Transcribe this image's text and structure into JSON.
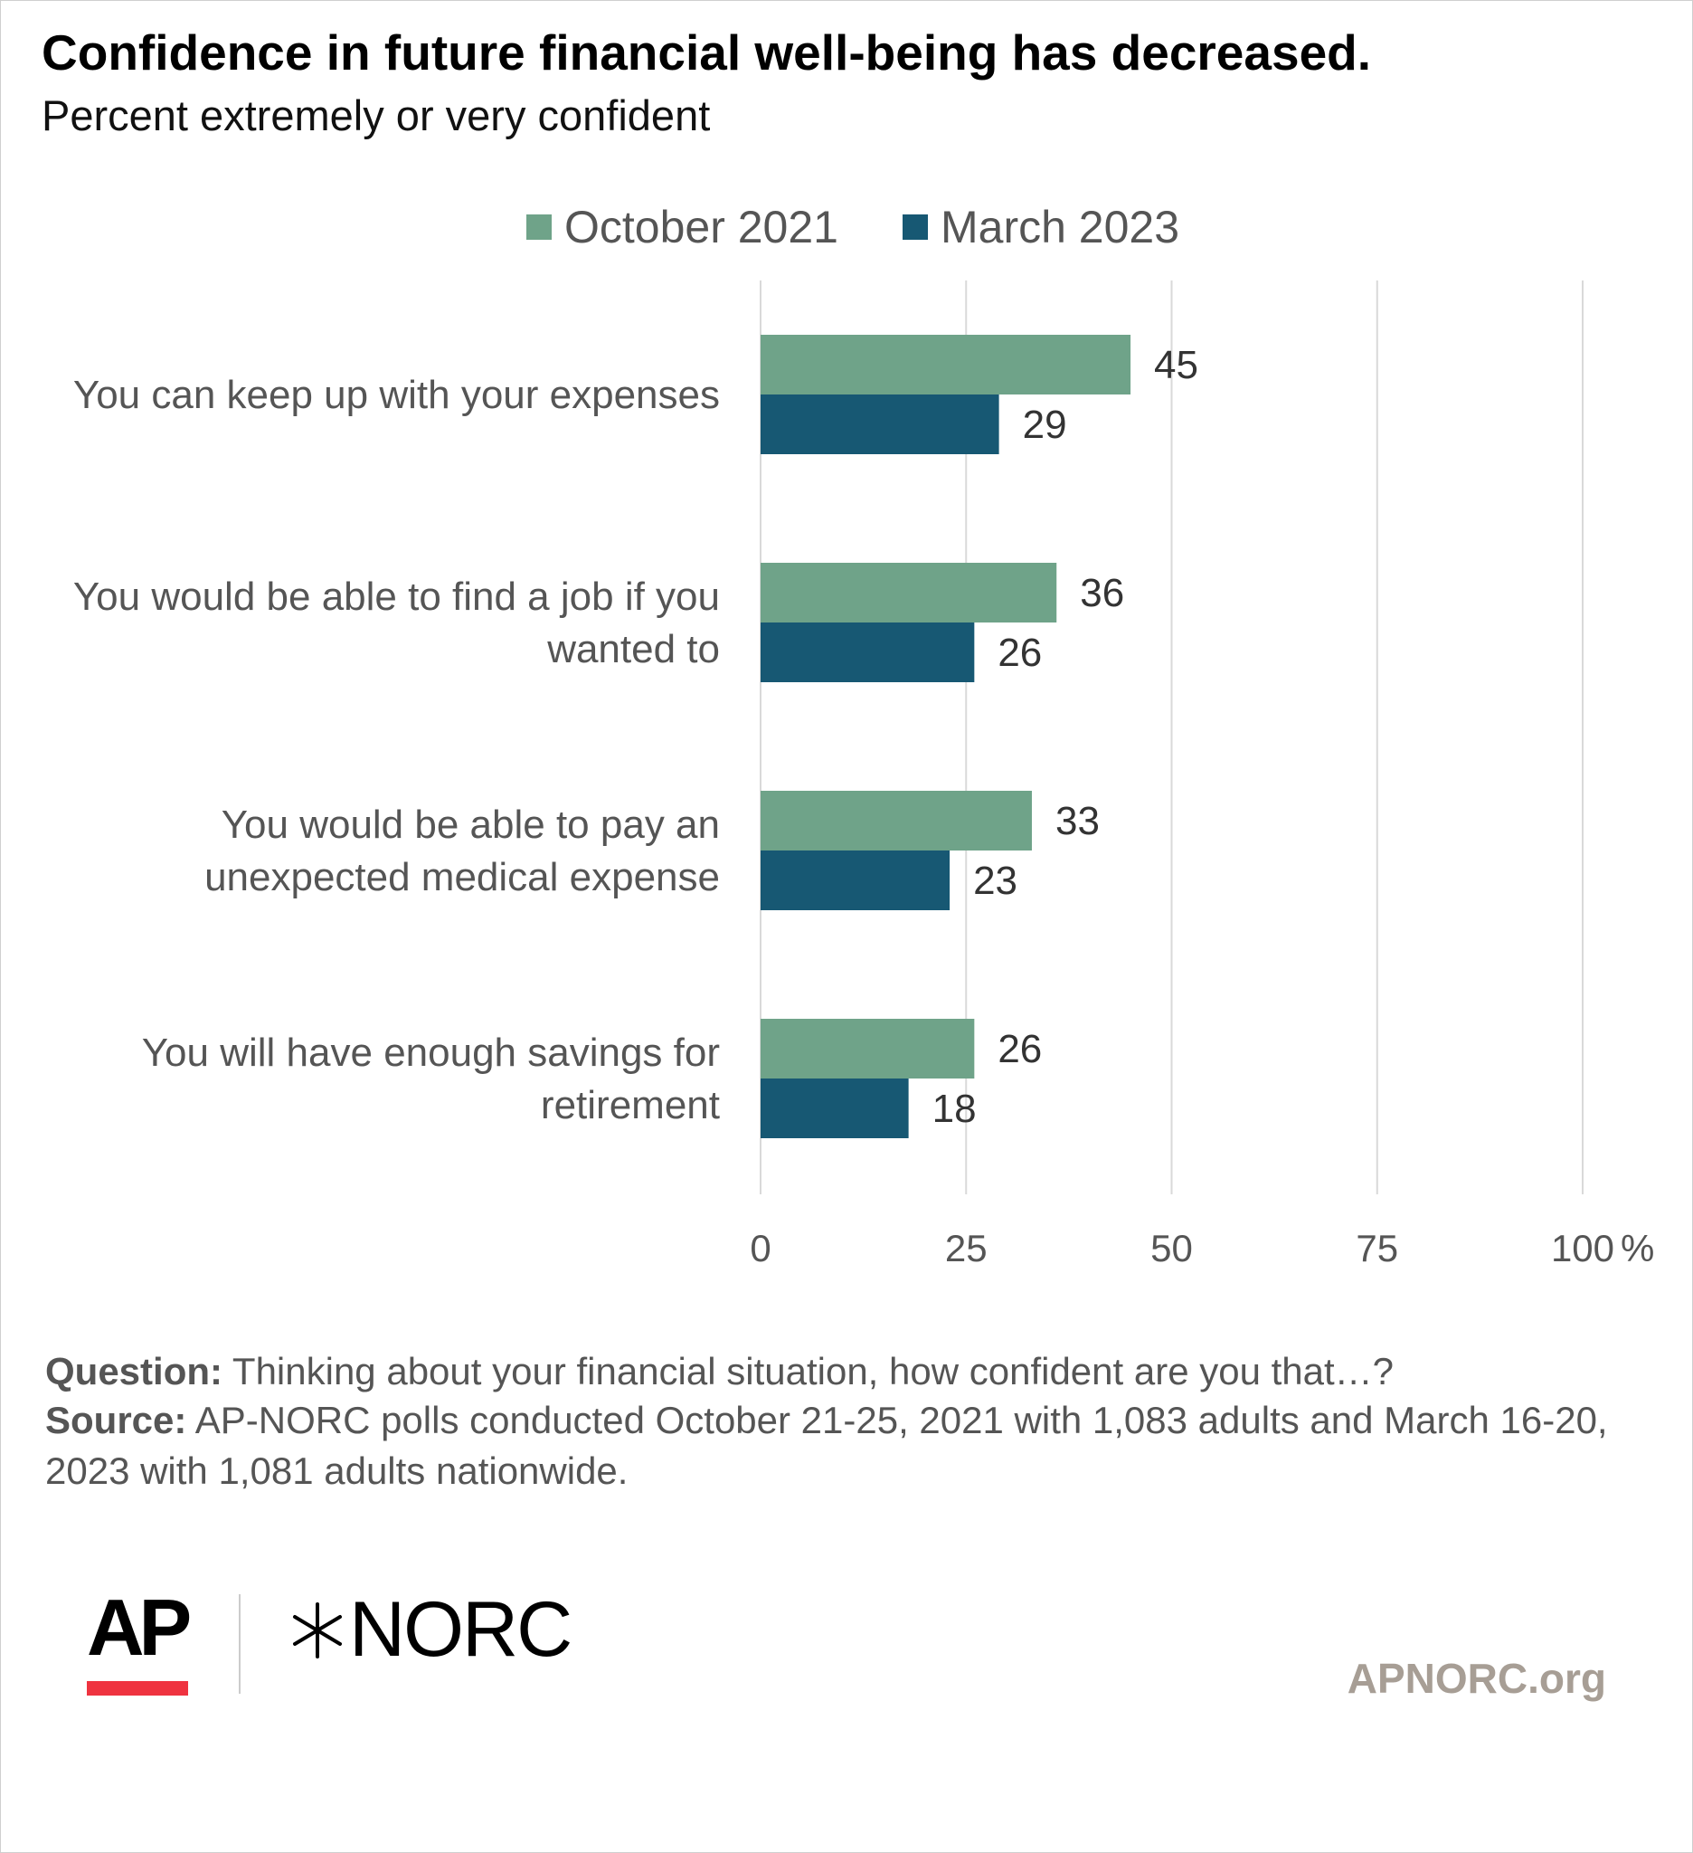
{
  "header": {
    "title": "Confidence in future financial well-being has decreased.",
    "subtitle": "Percent extremely or very confident"
  },
  "legend": {
    "items": [
      {
        "label": "October 2021",
        "color": "#6fa389"
      },
      {
        "label": "March 2023",
        "color": "#175873"
      }
    ]
  },
  "chart_data": {
    "type": "bar",
    "orientation": "horizontal",
    "title": "Confidence in future financial well-being has decreased.",
    "subtitle": "Percent extremely or very confident",
    "categories": [
      [
        "You can keep up with your expenses"
      ],
      [
        "You would be able to find a job if you",
        "wanted to"
      ],
      [
        "You would be able to pay an",
        "unexpected medical expense"
      ],
      [
        "You will have enough savings for",
        "retirement"
      ]
    ],
    "series": [
      {
        "name": "October 2021",
        "color": "#6fa389",
        "values": [
          45,
          36,
          33,
          26
        ]
      },
      {
        "name": "March 2023",
        "color": "#175873",
        "values": [
          29,
          26,
          23,
          18
        ]
      }
    ],
    "xlim": [
      0,
      100
    ],
    "x_ticks": [
      "0",
      "25",
      "50",
      "75",
      "100"
    ],
    "x_unit": "%",
    "grid": true,
    "legend_position": "top"
  },
  "footer": {
    "question_label": "Question:",
    "question_text": " Thinking about your financial situation, how confident are you that…?",
    "source_label": "Source:",
    "source_text": " AP-NORC polls conducted October 21-25, 2021 with 1,083 adults and March 16-20, 2023 with 1,081 adults nationwide.",
    "ap_logo_text": "AP",
    "norc_logo_text": "NORC",
    "website": "APNORC.org"
  }
}
